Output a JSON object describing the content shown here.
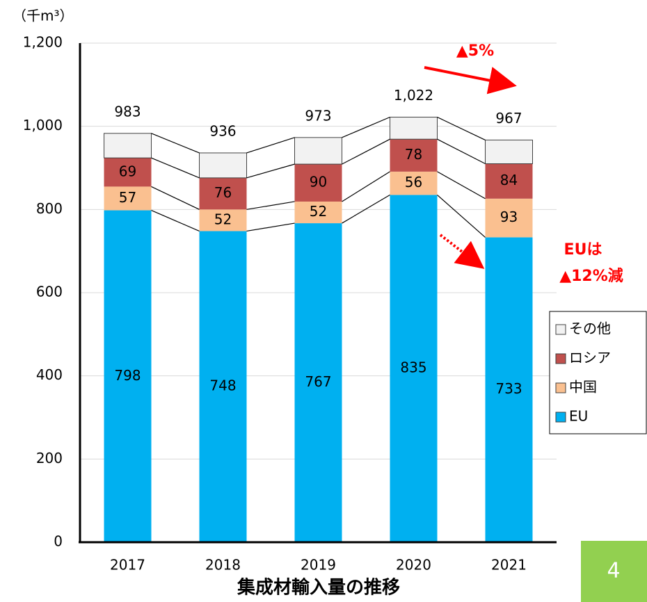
{
  "chart_data": {
    "type": "stacked-bar",
    "title": "集成材輸入量の推移",
    "unit_label": "（千m³）",
    "categories": [
      "2017",
      "2018",
      "2019",
      "2020",
      "2021"
    ],
    "series": [
      {
        "name": "EU",
        "color": "#00b0f0",
        "values": [
          798,
          748,
          767,
          835,
          733
        ]
      },
      {
        "name": "中国",
        "color": "#fac090",
        "values": [
          57,
          52,
          52,
          56,
          93
        ]
      },
      {
        "name": "ロシア",
        "color": "#c0504d",
        "values": [
          69,
          76,
          90,
          78,
          84
        ]
      },
      {
        "name": "その他",
        "color": "#f2f2f2",
        "values": [
          59,
          60,
          64,
          53,
          57
        ]
      }
    ],
    "label_series": [
      0,
      1,
      2
    ],
    "totals": {
      "values": [
        983,
        936,
        973,
        1022,
        967
      ],
      "value_labels": [
        "983",
        "936",
        "973",
        "1,022",
        "967"
      ]
    },
    "ylim": [
      0,
      1200
    ],
    "yticks": [
      0,
      200,
      400,
      600,
      800,
      {
        "value": 1000,
        "label": "1,000"
      },
      {
        "value": 1200,
        "label": "1,200"
      }
    ],
    "grid": true,
    "legend": "right",
    "annotations": {
      "total_change": "▲5%",
      "eu_change_1": "EUは",
      "eu_change_2": "▲12%減"
    },
    "page_number": "4"
  }
}
